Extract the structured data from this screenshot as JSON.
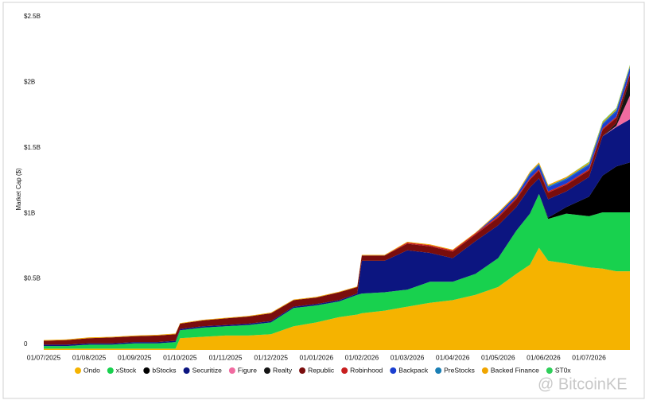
{
  "chart_data": {
    "type": "stacked-area",
    "y_label": "Market Cap ($)",
    "watermark": "@ BitcoinKE",
    "x": [
      0,
      0.5,
      1,
      1.5,
      2,
      2.5,
      2.9,
      3,
      3.5,
      4,
      4.5,
      5,
      5.5,
      6,
      6.5,
      6.9,
      7,
      7.5,
      8,
      8.5,
      9,
      9.5,
      10,
      10.4,
      10.7,
      10.9,
      11.1,
      11.5,
      12,
      12.3,
      12.6,
      12.9
    ],
    "xlim": [
      0,
      12.9
    ],
    "xticks": [
      {
        "value": 0,
        "label": "01/07/2025"
      },
      {
        "value": 1,
        "label": "01/08/2025"
      },
      {
        "value": 2,
        "label": "01/09/2025"
      },
      {
        "value": 3,
        "label": "01/10/2025"
      },
      {
        "value": 4,
        "label": "01/11/2025"
      },
      {
        "value": 5,
        "label": "01/12/2025"
      },
      {
        "value": 6,
        "label": "01/01/2026"
      },
      {
        "value": 7,
        "label": "01/02/2026"
      },
      {
        "value": 8,
        "label": "01/03/2026"
      },
      {
        "value": 9,
        "label": "01/04/2026"
      },
      {
        "value": 10,
        "label": "01/05/2026"
      },
      {
        "value": 11,
        "label": "01/06/2026"
      },
      {
        "value": 12,
        "label": "01/07/2026"
      }
    ],
    "ylim": [
      0,
      2.5
    ],
    "yticks": [
      0,
      {
        "value": 0.5,
        "label": "$0.5B"
      },
      {
        "value": 1,
        "label": "$1B"
      },
      {
        "value": 1.5,
        "label": "$1.5B"
      },
      {
        "value": 2,
        "label": "$2B"
      },
      {
        "value": 2.5,
        "label": "$2.5B"
      }
    ],
    "grid": false,
    "legend": "bottom",
    "series": [
      {
        "name": "Ondo",
        "color": "#f5b300",
        "values": [
          0.01,
          0.01,
          0.01,
          0.01,
          0.01,
          0.01,
          0.01,
          0.09,
          0.1,
          0.11,
          0.11,
          0.12,
          0.18,
          0.21,
          0.25,
          0.27,
          0.28,
          0.3,
          0.33,
          0.36,
          0.38,
          0.42,
          0.48,
          0.58,
          0.65,
          0.78,
          0.68,
          0.66,
          0.63,
          0.62,
          0.6,
          0.6
        ]
      },
      {
        "name": "xStock",
        "color": "#18d14e",
        "values": [
          0.02,
          0.02,
          0.03,
          0.03,
          0.04,
          0.04,
          0.05,
          0.06,
          0.07,
          0.07,
          0.08,
          0.09,
          0.14,
          0.13,
          0.12,
          0.15,
          0.15,
          0.14,
          0.13,
          0.16,
          0.14,
          0.16,
          0.22,
          0.33,
          0.39,
          0.41,
          0.32,
          0.38,
          0.39,
          0.43,
          0.45,
          0.45
        ]
      },
      {
        "name": "bStocks",
        "color": "#000000",
        "values": [
          0,
          0,
          0,
          0,
          0,
          0,
          0,
          0,
          0,
          0,
          0,
          0,
          0,
          0,
          0,
          0,
          0,
          0,
          0,
          0,
          0,
          0,
          0,
          0,
          0,
          0,
          0.01,
          0.05,
          0.15,
          0.28,
          0.35,
          0.38
        ]
      },
      {
        "name": "Securitize",
        "color": "#0c1580",
        "values": [
          0.01,
          0.01,
          0.01,
          0.01,
          0.01,
          0.01,
          0.01,
          0.01,
          0.01,
          0.01,
          0.01,
          0.01,
          0.01,
          0.01,
          0.01,
          0.01,
          0.25,
          0.24,
          0.3,
          0.22,
          0.18,
          0.25,
          0.25,
          0.18,
          0.2,
          0.12,
          0.14,
          0.12,
          0.15,
          0.3,
          0.3,
          0.33
        ]
      },
      {
        "name": "Figure",
        "color": "#f06ba0",
        "values": [
          0,
          0,
          0,
          0,
          0,
          0,
          0,
          0,
          0,
          0,
          0,
          0,
          0,
          0,
          0,
          0,
          0,
          0,
          0,
          0,
          0,
          0,
          0,
          0,
          0,
          0,
          0,
          0,
          0,
          0,
          0.01,
          0.18
        ]
      },
      {
        "name": "Realty",
        "color": "#151515",
        "values": [
          0,
          0,
          0,
          0,
          0,
          0,
          0,
          0,
          0,
          0,
          0,
          0,
          0,
          0,
          0,
          0,
          0,
          0,
          0,
          0,
          0,
          0,
          0,
          0,
          0,
          0,
          0,
          0,
          0,
          0,
          0.02,
          0.12
        ]
      },
      {
        "name": "Republic",
        "color": "#7a0d0d",
        "values": [
          0.03,
          0.035,
          0.04,
          0.045,
          0.045,
          0.05,
          0.05,
          0.04,
          0.045,
          0.05,
          0.055,
          0.06,
          0.05,
          0.05,
          0.06,
          0.05,
          0.04,
          0.04,
          0.05,
          0.05,
          0.05,
          0.05,
          0.06,
          0.06,
          0.06,
          0.06,
          0.05,
          0.05,
          0.05,
          0.05,
          0.04,
          0.04
        ]
      },
      {
        "name": "Robinhood",
        "color": "#c81e1e",
        "values": [
          0,
          0,
          0,
          0,
          0,
          0,
          0,
          0,
          0,
          0,
          0,
          0,
          0,
          0,
          0,
          0,
          0,
          0,
          0.01,
          0.01,
          0.01,
          0.01,
          0.01,
          0.01,
          0.01,
          0.01,
          0.01,
          0.01,
          0.01,
          0.01,
          0.01,
          0.01
        ]
      },
      {
        "name": "Backpack",
        "color": "#1b3fd1",
        "values": [
          0,
          0,
          0,
          0,
          0,
          0,
          0,
          0,
          0,
          0,
          0,
          0,
          0,
          0,
          0,
          0,
          0,
          0,
          0,
          0,
          0,
          0,
          0.02,
          0.02,
          0.03,
          0.03,
          0.03,
          0.03,
          0.03,
          0.03,
          0.04,
          0.04
        ]
      },
      {
        "name": "PreStocks",
        "color": "#1a7fb5",
        "values": [
          0,
          0,
          0,
          0,
          0,
          0,
          0,
          0,
          0,
          0,
          0,
          0,
          0,
          0,
          0,
          0,
          0,
          0,
          0,
          0,
          0,
          0,
          0,
          0,
          0.01,
          0.01,
          0.01,
          0.01,
          0.01,
          0.01,
          0.01,
          0.01
        ]
      },
      {
        "name": "Backed Finance",
        "color": "#f0a500",
        "values": [
          0.005,
          0.005,
          0.005,
          0.005,
          0.005,
          0.005,
          0.005,
          0.005,
          0.005,
          0.005,
          0.005,
          0.005,
          0.005,
          0.005,
          0.005,
          0.005,
          0.005,
          0.005,
          0.005,
          0.005,
          0.005,
          0.005,
          0.01,
          0.01,
          0.01,
          0.01,
          0.01,
          0.01,
          0.01,
          0.01,
          0.01,
          0.01
        ]
      },
      {
        "name": "ST0x",
        "color": "#2fcf5a",
        "values": [
          0,
          0,
          0,
          0,
          0,
          0,
          0,
          0,
          0,
          0,
          0,
          0,
          0,
          0,
          0,
          0,
          0,
          0,
          0,
          0,
          0,
          0,
          0,
          0,
          0,
          0,
          0,
          0,
          0.005,
          0.005,
          0.005,
          0.005
        ]
      }
    ]
  }
}
